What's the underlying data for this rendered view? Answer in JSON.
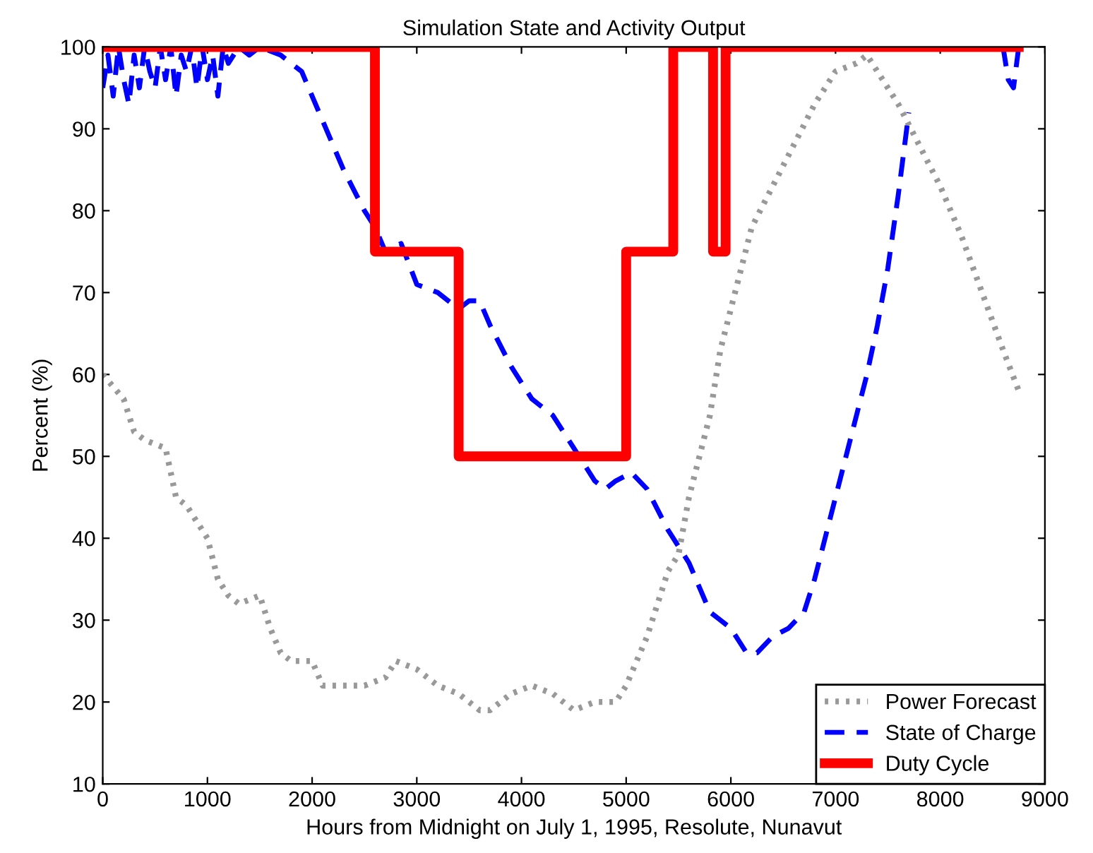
{
  "chart_data": {
    "type": "line",
    "title": "Simulation State and Activity Output",
    "xlabel": "Hours from Midnight on July 1, 1995, Resolute, Nunavut",
    "ylabel": "Percent (%)",
    "xlim": [
      0,
      9000
    ],
    "ylim": [
      10,
      100
    ],
    "xticks": [
      0,
      1000,
      2000,
      3000,
      4000,
      5000,
      6000,
      7000,
      8000,
      9000
    ],
    "yticks": [
      10,
      20,
      30,
      40,
      50,
      60,
      70,
      80,
      90,
      100
    ],
    "grid": false,
    "legend": "bottom right",
    "series": [
      {
        "name": "Power Forecast",
        "color": "#999999",
        "line_style": "dotted",
        "x": [
          0,
          200,
          300,
          400,
          600,
          700,
          800,
          1000,
          1100,
          1200,
          1300,
          1500,
          1600,
          1700,
          1800,
          2000,
          2100,
          2200,
          2500,
          2700,
          2800,
          3000,
          3200,
          3400,
          3600,
          3700,
          3900,
          4100,
          4300,
          4500,
          4700,
          4900,
          5000,
          5200,
          5400,
          5500,
          5600,
          5800,
          5900,
          6000,
          6200,
          6400,
          6600,
          6800,
          7000,
          7200,
          7300,
          7400,
          7600,
          7800,
          8000,
          8200,
          8400,
          8600,
          8750
        ],
        "values": [
          60,
          57,
          53,
          52,
          51,
          45,
          44,
          40,
          35,
          33,
          32,
          33,
          29,
          26,
          25,
          25,
          22,
          22,
          22,
          23,
          25,
          24,
          22,
          21,
          19,
          19,
          21,
          22,
          21,
          19,
          20,
          20,
          22,
          28,
          36,
          38,
          45,
          55,
          63,
          68,
          78,
          83,
          88,
          93,
          97,
          98,
          99,
          97,
          93,
          88,
          83,
          77,
          70,
          63,
          58
        ]
      },
      {
        "name": "State of Charge",
        "color": "#0000ff",
        "line_style": "dashed",
        "x": [
          0,
          50,
          100,
          150,
          200,
          250,
          300,
          350,
          400,
          450,
          500,
          550,
          600,
          650,
          700,
          750,
          800,
          850,
          900,
          950,
          1000,
          1050,
          1100,
          1150,
          1200,
          1300,
          1400,
          1500,
          1700,
          1900,
          2100,
          2300,
          2500,
          2600,
          2700,
          2850,
          3000,
          3200,
          3400,
          3500,
          3600,
          3700,
          3900,
          4100,
          4300,
          4500,
          4700,
          4800,
          4900,
          5050,
          5200,
          5400,
          5600,
          5800,
          6000,
          6150,
          6250,
          6400,
          6550,
          6700,
          6800,
          6900,
          7000,
          7100,
          7200,
          7300,
          7400,
          7500,
          7600,
          7700,
          7750,
          8000,
          8300,
          8600,
          8650,
          8700,
          8750
        ],
        "values": [
          95,
          99,
          94,
          100,
          96,
          93,
          99,
          95,
          100,
          97,
          95,
          100,
          96,
          100,
          94,
          99,
          97,
          100,
          95,
          100,
          96,
          99,
          94,
          100,
          98,
          100,
          99,
          100,
          99,
          97,
          91,
          85,
          80,
          78,
          75,
          76,
          71,
          70,
          68,
          69,
          69,
          66,
          61,
          57,
          55,
          51,
          47,
          46,
          47,
          48,
          46,
          41,
          37,
          31,
          29,
          26,
          26,
          28,
          29,
          31,
          35,
          40,
          45,
          50,
          55,
          60,
          66,
          73,
          82,
          92,
          null,
          null,
          null,
          100,
          96,
          95,
          100
        ]
      },
      {
        "name": "Duty Cycle",
        "type": "step",
        "color": "#ff0000",
        "line_style": "solid",
        "x": [
          0,
          2600,
          3400,
          5000,
          5450,
          5830,
          5950,
          8750
        ],
        "values": [
          100,
          75,
          50,
          75,
          100,
          75,
          100,
          100
        ]
      }
    ]
  }
}
